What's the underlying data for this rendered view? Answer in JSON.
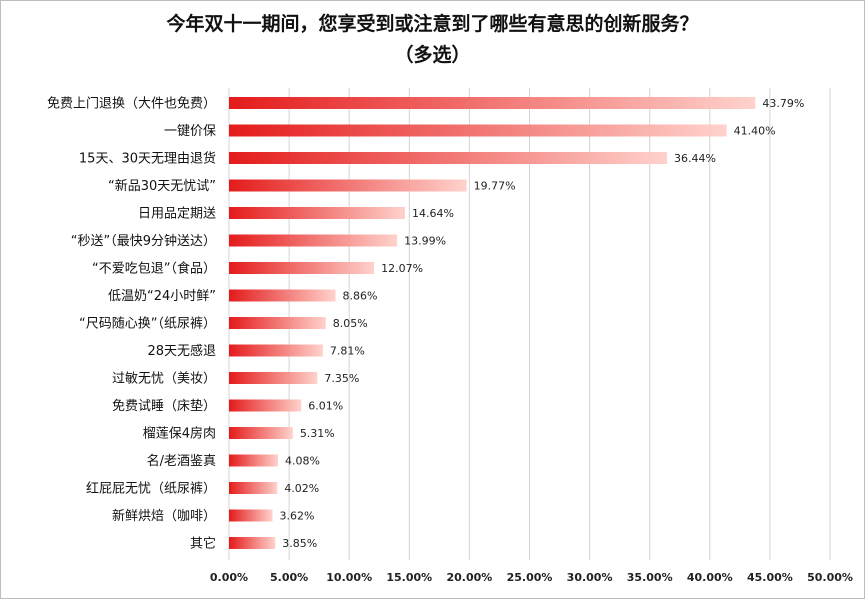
{
  "chart_data": {
    "type": "bar",
    "orientation": "horizontal",
    "title": "今年双十一期间，您享受到或注意到了哪些有意思的创新服务？",
    "subtitle": "（多选）",
    "categories": [
      "免费上门退换（大件也免费）",
      "一键价保",
      "15天、30天无理由退货",
      "“新品30天无忧试”",
      "日用品定期送",
      "“秒送”（最快9分钟送达）",
      "“不爱吃包退”（食品）",
      "低温奶“24小时鲜”",
      "“尺码随心换”（纸尿裤）",
      "28天无感退",
      "过敏无忧（美妆）",
      "免费试睡（床垫）",
      "榴莲保4房肉",
      "名/老酒鉴真",
      "红屁屁无忧（纸尿裤）",
      "新鲜烘焙（咖啡）",
      "其它"
    ],
    "values": [
      43.79,
      41.4,
      36.44,
      19.77,
      14.64,
      13.99,
      12.07,
      8.86,
      8.05,
      7.81,
      7.35,
      6.01,
      5.31,
      4.08,
      4.02,
      3.62,
      3.85
    ],
    "value_labels": [
      "43.79%",
      "41.40%",
      "36.44%",
      "19.77%",
      "14.64%",
      "13.99%",
      "12.07%",
      "8.86%",
      "8.05%",
      "7.81%",
      "7.35%",
      "6.01%",
      "5.31%",
      "4.08%",
      "4.02%",
      "3.62%",
      "3.85%"
    ],
    "xlim": [
      0,
      50
    ],
    "x_ticks": [
      0,
      5,
      10,
      15,
      20,
      25,
      30,
      35,
      40,
      45,
      50
    ],
    "x_tick_labels": [
      "0.00%",
      "5.00%",
      "10.00%",
      "15.00%",
      "20.00%",
      "25.00%",
      "30.00%",
      "35.00%",
      "40.00%",
      "45.00%",
      "50.00%"
    ],
    "grid": "vertical",
    "legend": "none",
    "colors": {
      "bar_start": "#e41b1b",
      "bar_end": "#ffd2cc",
      "grid": "#d4d4d4"
    }
  }
}
